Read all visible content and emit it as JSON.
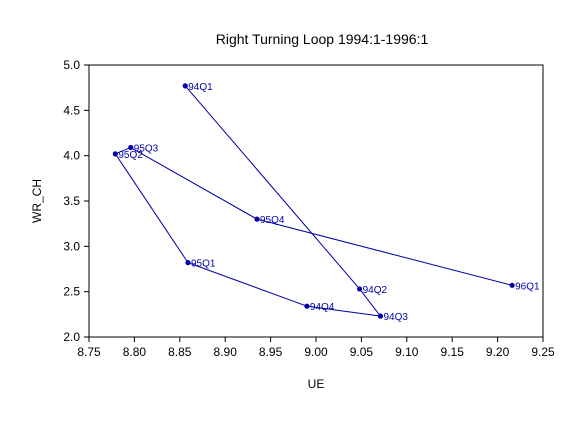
{
  "chart_data": {
    "type": "line",
    "title": "Right Turning Loop 1994:1-1996:1",
    "xlabel": "UE",
    "ylabel": "WR_CH",
    "xlim": [
      8.75,
      9.25
    ],
    "ylim": [
      2.0,
      5.0
    ],
    "xticks": [
      "8.75",
      "8.80",
      "8.85",
      "8.90",
      "8.95",
      "9.00",
      "9.05",
      "9.10",
      "9.15",
      "9.20",
      "9.25"
    ],
    "yticks": [
      "2.0",
      "2.5",
      "3.0",
      "3.5",
      "4.0",
      "4.5",
      "5.0"
    ],
    "grid": false,
    "series_color": "#0000aa",
    "points": [
      {
        "label": "94Q1",
        "x": 8.856,
        "y": 4.77
      },
      {
        "label": "94Q2",
        "x": 9.048,
        "y": 2.53
      },
      {
        "label": "94Q3",
        "x": 9.071,
        "y": 2.23
      },
      {
        "label": "94Q4",
        "x": 8.99,
        "y": 2.34
      },
      {
        "label": "95Q1",
        "x": 8.859,
        "y": 2.82
      },
      {
        "label": "95Q2",
        "x": 8.779,
        "y": 4.02
      },
      {
        "label": "95Q3",
        "x": 8.796,
        "y": 4.09
      },
      {
        "label": "95Q4",
        "x": 8.935,
        "y": 3.3
      },
      {
        "label": "96Q1",
        "x": 9.216,
        "y": 2.57
      }
    ]
  }
}
